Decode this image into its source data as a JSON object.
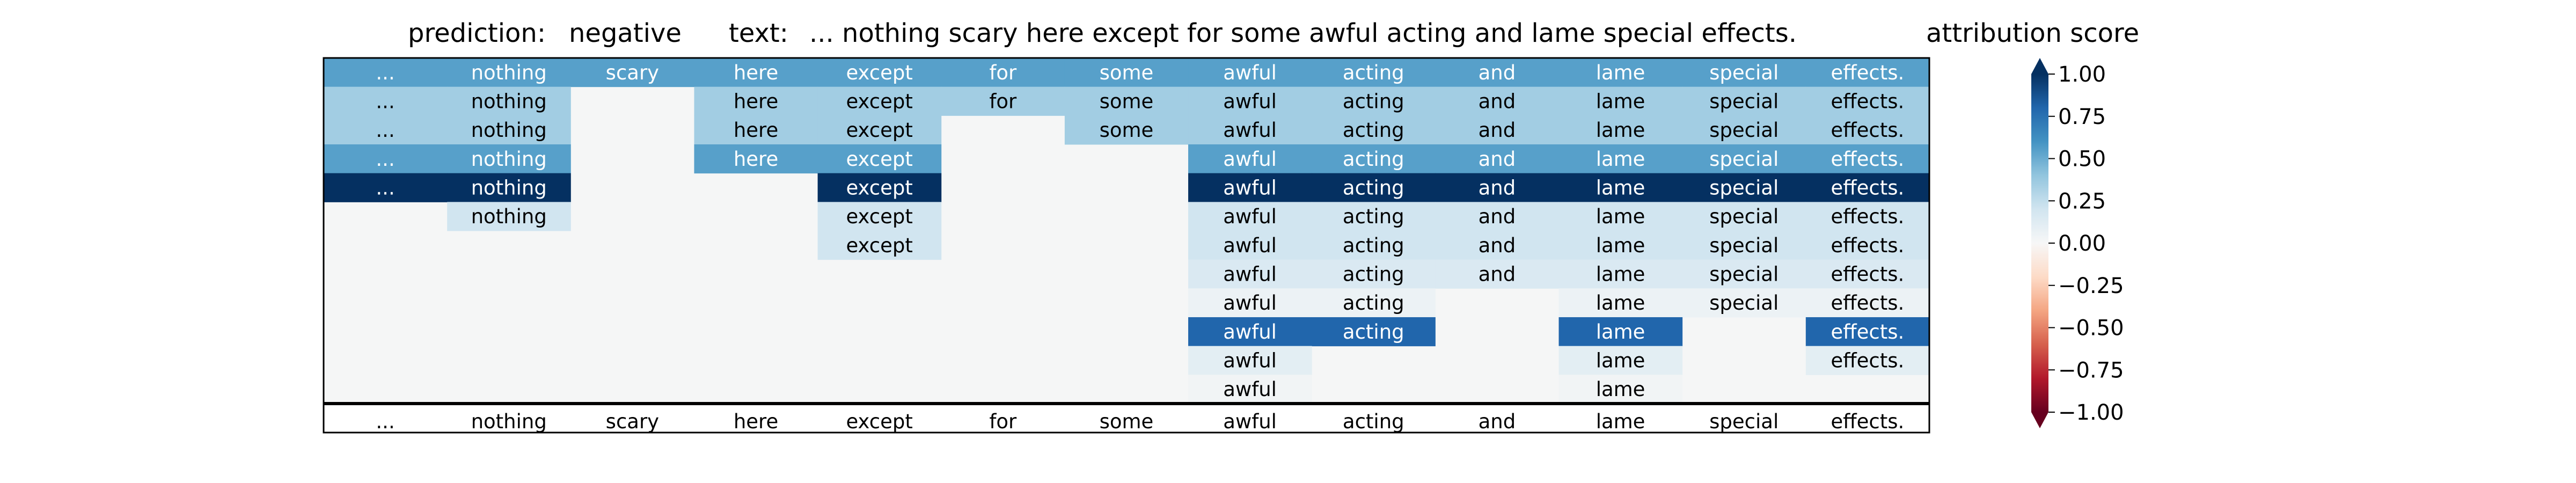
{
  "header": {
    "prediction_label": "prediction:",
    "prediction_value": "negative",
    "text_label": "text:",
    "text_value": "... nothing scary here except for some awful acting and lame special effects.",
    "colorbar_title": "attribution score"
  },
  "chart_data": {
    "type": "heatmap",
    "title": "",
    "columns": [
      "...",
      "nothing",
      "scary",
      "here",
      "except",
      "for",
      "some",
      "awful",
      "acting",
      "and",
      "lame",
      "special",
      "effects."
    ],
    "footer_tokens": [
      "...",
      "nothing",
      "scary",
      "here",
      "except",
      "for",
      "some",
      "awful",
      "acting",
      "and",
      "lame",
      "special",
      "effects."
    ],
    "rows": [
      [
        0.55,
        0.55,
        0.55,
        0.55,
        0.55,
        0.55,
        0.55,
        0.55,
        0.55,
        0.55,
        0.55,
        0.55,
        0.55
      ],
      [
        0.35,
        0.35,
        null,
        0.35,
        0.35,
        0.35,
        0.35,
        0.35,
        0.35,
        0.35,
        0.35,
        0.35,
        0.35
      ],
      [
        0.35,
        0.35,
        null,
        0.35,
        0.35,
        null,
        0.35,
        0.35,
        0.35,
        0.35,
        0.35,
        0.35,
        0.35
      ],
      [
        0.55,
        0.55,
        null,
        0.55,
        0.55,
        null,
        null,
        0.55,
        0.55,
        0.55,
        0.55,
        0.55,
        0.55
      ],
      [
        1.0,
        1.0,
        null,
        null,
        1.0,
        null,
        null,
        1.0,
        1.0,
        1.0,
        1.0,
        1.0,
        1.0
      ],
      [
        null,
        0.2,
        null,
        null,
        0.2,
        null,
        null,
        0.2,
        0.2,
        0.2,
        0.2,
        0.2,
        0.2
      ],
      [
        null,
        null,
        null,
        null,
        0.2,
        null,
        null,
        0.2,
        0.2,
        0.2,
        0.2,
        0.2,
        0.2
      ],
      [
        null,
        null,
        null,
        null,
        null,
        null,
        null,
        0.15,
        0.15,
        0.15,
        0.15,
        0.15,
        0.15
      ],
      [
        null,
        null,
        null,
        null,
        null,
        null,
        null,
        0.05,
        0.05,
        null,
        0.05,
        0.05,
        0.05
      ],
      [
        null,
        null,
        null,
        null,
        null,
        null,
        null,
        0.8,
        0.8,
        null,
        0.8,
        null,
        0.8
      ],
      [
        null,
        null,
        null,
        null,
        null,
        null,
        null,
        0.1,
        null,
        null,
        0.1,
        null,
        0.1
      ],
      [
        null,
        null,
        null,
        null,
        null,
        null,
        null,
        0.02,
        null,
        null,
        0.02,
        null,
        null
      ]
    ],
    "empty_value": 0.0,
    "colorbar": {
      "label": "attribution score",
      "range": [
        -1.0,
        1.0
      ],
      "ticks": [
        -1.0,
        -0.75,
        -0.5,
        -0.25,
        0.0,
        0.25,
        0.5,
        0.75,
        1.0
      ],
      "tick_labels": [
        "−1.00",
        "−0.75",
        "−0.50",
        "−0.25",
        "0.00",
        "0.25",
        "0.50",
        "0.75",
        "1.00"
      ],
      "colormap": "RdBu",
      "extend": "both"
    }
  }
}
